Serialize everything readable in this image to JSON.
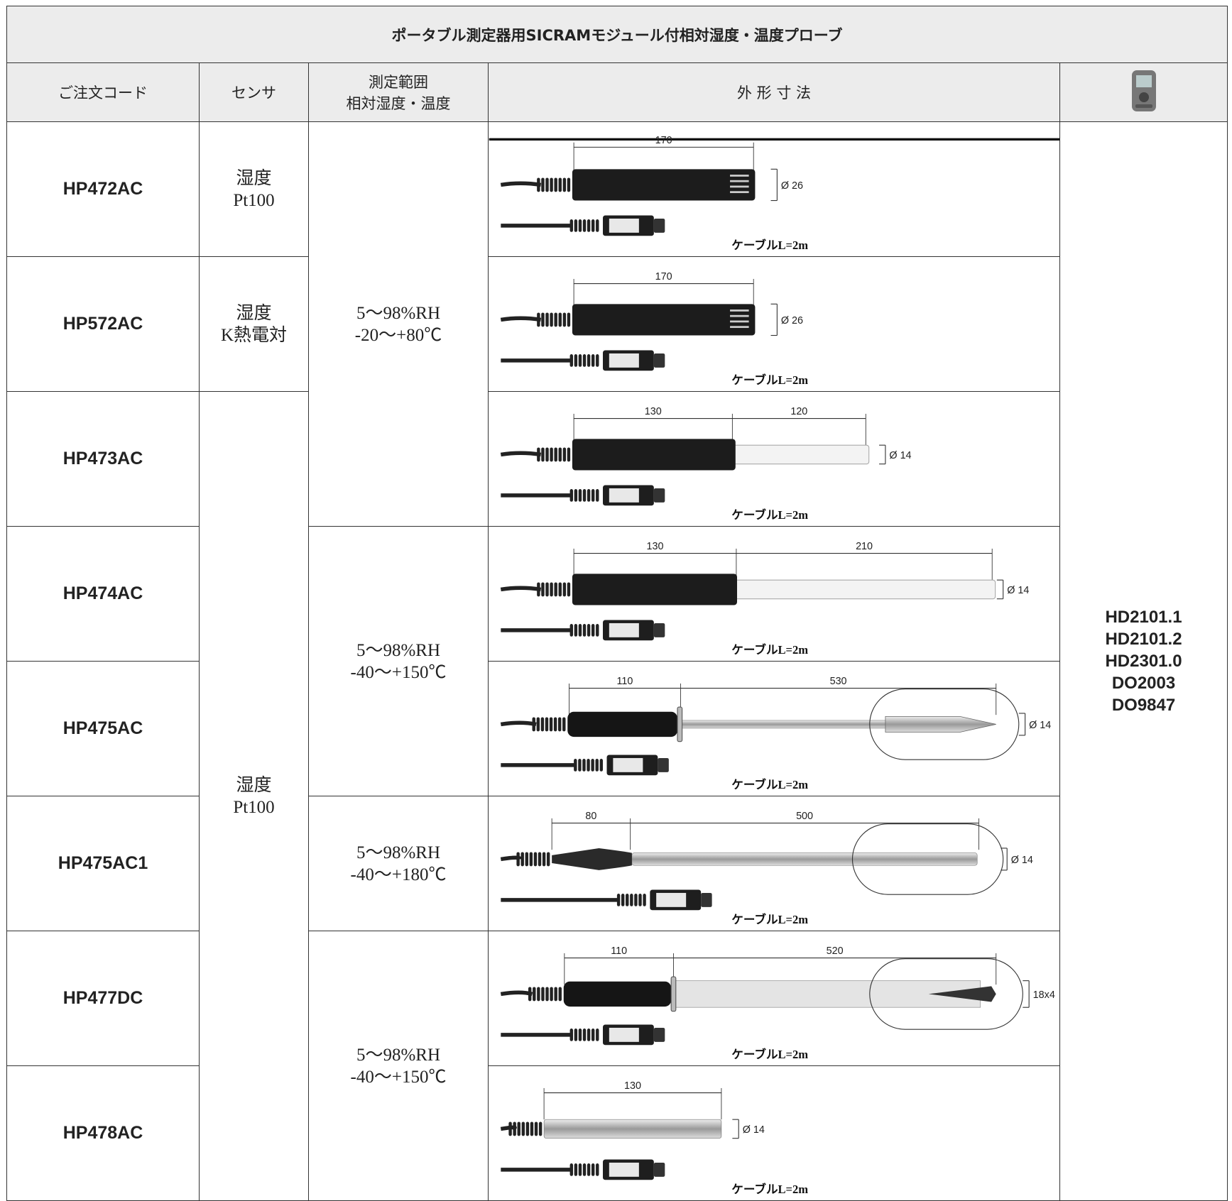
{
  "title": "ポータブル測定器用SICRAMモジュール付相対湿度・温度プローブ",
  "header": {
    "code": "ご注文コード",
    "sensor": "センサ",
    "range": [
      "測定範囲",
      "相対湿度・温度"
    ],
    "dimensions": "外 形 寸 法"
  },
  "rows": [
    {
      "code": "HP472AC",
      "dims": [
        "170"
      ],
      "size": "Ø 26",
      "cable": "ケーブルL=2m"
    },
    {
      "code": "HP572AC",
      "dims": [
        "170"
      ],
      "size": "Ø 26",
      "cable": "ケーブルL=2m"
    },
    {
      "code": "HP473AC",
      "dims": [
        "130",
        "120"
      ],
      "size": "Ø 14",
      "cable": "ケーブルL=2m"
    },
    {
      "code": "HP474AC",
      "dims": [
        "130",
        "210"
      ],
      "size": "Ø 14",
      "cable": "ケーブルL=2m"
    },
    {
      "code": "HP475AC",
      "dims": [
        "110",
        "530"
      ],
      "size": "Ø 14",
      "cable": "ケーブルL=2m"
    },
    {
      "code": "HP475AC1",
      "dims": [
        "80",
        "500"
      ],
      "size": "Ø 14",
      "cable": "ケーブルL=2m"
    },
    {
      "code": "HP477DC",
      "dims": [
        "110",
        "520"
      ],
      "size": "18x4",
      "cable": "ケーブルL=2m"
    },
    {
      "code": "HP478AC",
      "dims": [
        "130"
      ],
      "size": "Ø 14",
      "cable": "ケーブルL=2m"
    }
  ],
  "sensors": [
    [
      "湿度",
      "Pt100"
    ],
    [
      "湿度",
      "K熱電対"
    ],
    [
      "湿度",
      "Pt100"
    ]
  ],
  "ranges": [
    [
      "5〜98%RH",
      "-20〜+80℃"
    ],
    [
      "5〜98%RH",
      "-40〜+150℃"
    ],
    [
      "5〜98%RH",
      "-40〜+180℃"
    ],
    [
      "5〜98%RH",
      "-40〜+150℃"
    ]
  ],
  "instruments": [
    "HD2101.1",
    "HD2101.2",
    "HD2301.0",
    "DO2003",
    "DO9847"
  ]
}
